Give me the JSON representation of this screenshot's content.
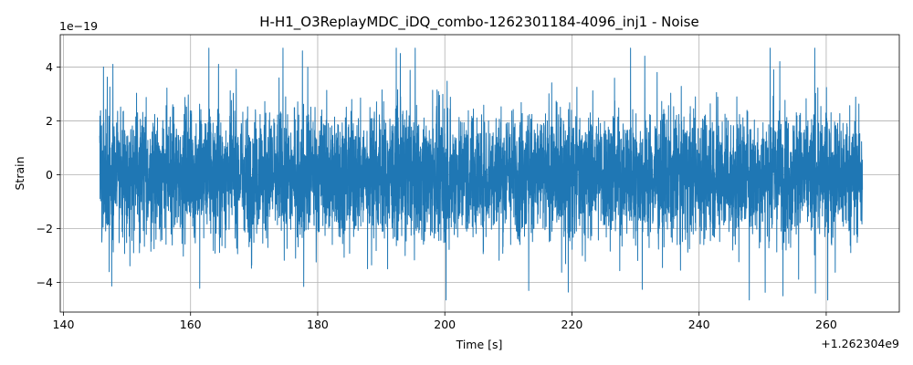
{
  "chart_data": {
    "type": "line",
    "title": "H-H1_O3ReplayMDC_iDQ_combo-1262301184-4096_inj1 - Noise",
    "xlabel": "Time [s]",
    "ylabel": "Strain",
    "x_offset_label": "+1.262304e9",
    "y_scale_label": "1e−19",
    "xlim": [
      139.5,
      271.5
    ],
    "ylim": [
      -5.1,
      5.2
    ],
    "x_ticks": [
      140,
      160,
      180,
      200,
      220,
      240,
      260
    ],
    "y_ticks": [
      -4,
      -2,
      0,
      2,
      4
    ],
    "x_tick_labels": [
      "140",
      "160",
      "180",
      "200",
      "220",
      "240",
      "260"
    ],
    "y_tick_labels": [
      "−4",
      "−2",
      "0",
      "2",
      "4"
    ],
    "grid": true,
    "line_color": "#1f77b4",
    "series": [
      {
        "x_start": 145.7,
        "x_end": 265.7,
        "typical_amplitude": 1.2,
        "envelope_max": 4.7,
        "envelope_min": -4.65,
        "peaks": [
          {
            "x": 146.3,
            "y": 4.0
          },
          {
            "x": 147.2,
            "y": -3.6
          },
          {
            "x": 164.4,
            "y": 4.1
          },
          {
            "x": 177.6,
            "y": 4.6
          },
          {
            "x": 177.8,
            "y": -4.15
          },
          {
            "x": 193.0,
            "y": 4.5
          },
          {
            "x": 200.2,
            "y": -4.65
          },
          {
            "x": 213.2,
            "y": -4.3
          },
          {
            "x": 252.7,
            "y": 4.2
          },
          {
            "x": 253.2,
            "y": -4.5
          },
          {
            "x": 258.2,
            "y": 4.7
          }
        ]
      }
    ]
  }
}
